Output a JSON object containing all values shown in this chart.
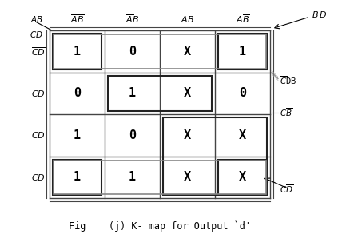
{
  "title": "Fig    (j) K- map for Output `d'",
  "cells": [
    [
      "1",
      "0",
      "X",
      "1"
    ],
    [
      "0",
      "1",
      "X",
      "0"
    ],
    [
      "1",
      "0",
      "X",
      "X"
    ],
    [
      "1",
      "1",
      "X",
      "X"
    ]
  ],
  "col_labels": [
    "$\\overline{A}\\overline{B}$",
    "$\\overline{A}B$",
    "$AB$",
    "$A\\overline{B}$"
  ],
  "row_labels": [
    "$\\overline{C}\\overline{D}$",
    "$\\overline{C}D$",
    "$CD$",
    "$C\\overline{D}$"
  ],
  "grid_color": "#444444",
  "bg_color": "#ffffff",
  "figsize": [
    4.38,
    3.03
  ],
  "dpi": 100
}
